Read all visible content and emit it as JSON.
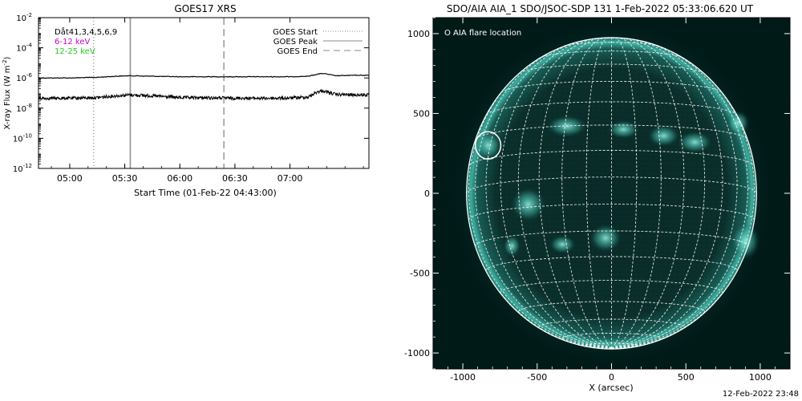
{
  "footer": "12-Feb-2022 23:48",
  "chart_data": [
    {
      "type": "line",
      "title": "GOES17 XRS",
      "xlabel": "Start Time (01-Feb-22 04:43:00)",
      "ylabel": "X-ray Flux (W m",
      "ylabel_sup": "-2",
      "ylabel_close": ")",
      "y_scale": "log",
      "ylim": [
        1e-12,
        0.01
      ],
      "y_ticks": [
        {
          "value": 0.01,
          "base": "10",
          "exp": "-2"
        },
        {
          "value": 0.0001,
          "base": "10",
          "exp": "-4"
        },
        {
          "value": 1e-06,
          "base": "10",
          "exp": "-6"
        },
        {
          "value": 1e-08,
          "base": "10",
          "exp": "-8"
        },
        {
          "value": 1e-10,
          "base": "10",
          "exp": "-10"
        },
        {
          "value": 1e-12,
          "base": "10",
          "exp": "-12"
        }
      ],
      "x_ticks": [
        {
          "time": "05:00",
          "label": "05:00"
        },
        {
          "time": "05:30",
          "label": "05:30"
        },
        {
          "time": "06:00",
          "label": "06:00"
        },
        {
          "time": "06:30",
          "label": "06:30"
        },
        {
          "time": "07:00",
          "label": "07:00"
        }
      ],
      "xlim": [
        "04:43",
        "07:43"
      ],
      "info_lines": [
        {
          "text": "Dåt41,3,4,5,6,9",
          "color": "#000000"
        },
        {
          "text": "6-12 keV",
          "color": "#cc00cc"
        },
        {
          "text": "12-25 keV",
          "color": "#22cc22"
        }
      ],
      "legend": [
        {
          "label": "GOES Start",
          "style": "dotted"
        },
        {
          "label": "GOES Peak",
          "style": "solid"
        },
        {
          "label": "GOES End",
          "style": "dashed"
        }
      ],
      "legend_position": "top-right",
      "markers": [
        {
          "name": "GOES Start",
          "time": "05:13",
          "style": "dotted"
        },
        {
          "name": "GOES Peak",
          "time": "05:33",
          "style": "solid"
        },
        {
          "name": "GOES End",
          "time": "06:24",
          "style": "dashed"
        }
      ],
      "series": [
        {
          "channel": "long",
          "x": [
            "04:43",
            "05:00",
            "05:15",
            "05:25",
            "05:33",
            "05:45",
            "06:00",
            "06:15",
            "06:30",
            "06:45",
            "07:00",
            "07:10",
            "07:15",
            "07:18",
            "07:25",
            "07:35",
            "07:43"
          ],
          "values": [
            1e-06,
            1e-06,
            1.1e-06,
            1.3e-06,
            1.4e-06,
            1.3e-06,
            1.2e-06,
            1.2e-06,
            1.2e-06,
            1.2e-06,
            1.2e-06,
            1.3e-06,
            1.8e-06,
            2e-06,
            1.4e-06,
            1.5e-06,
            1.5e-06
          ]
        },
        {
          "channel": "short",
          "x": [
            "04:43",
            "05:00",
            "05:15",
            "05:25",
            "05:33",
            "05:45",
            "06:00",
            "06:15",
            "06:30",
            "06:45",
            "07:00",
            "07:10",
            "07:15",
            "07:18",
            "07:25",
            "07:35",
            "07:43"
          ],
          "values": [
            4.5e-08,
            4.5e-08,
            5e-08,
            6.5e-08,
            7.5e-08,
            6.5e-08,
            5e-08,
            4.8e-08,
            4.6e-08,
            4.5e-08,
            4.6e-08,
            5.5e-08,
            1.2e-07,
            1.4e-07,
            8e-08,
            7.5e-08,
            7.5e-08
          ]
        }
      ]
    },
    {
      "type": "image",
      "title": "SDO/AIA AIA_1 SDO/JSOC-SDP 131  1-Feb-2022 05:33:06.620 UT",
      "xlabel": "X (arcsec)",
      "ylabel": "",
      "xlim": [
        -1200,
        1200
      ],
      "ylim": [
        -1100,
        1100
      ],
      "x_ticks": [
        -1000,
        -500,
        0,
        500,
        1000
      ],
      "y_ticks": [
        -1000,
        -500,
        0,
        500,
        1000
      ],
      "x_tick_labels": [
        "-1000",
        "-500",
        "0",
        "500",
        "1000"
      ],
      "y_tick_labels": [
        "-1000",
        "-500",
        "0",
        "500",
        "1000"
      ],
      "legend": "O AIA flare location",
      "solar_radius_arcsec": 975,
      "grid_spacing_deg": 10,
      "flare_location": {
        "x": -830,
        "y": 300,
        "radius": 90
      },
      "colors": {
        "background": "#001a18",
        "limb": "#4fd6c4",
        "disk": "#0a2d2a",
        "grid": "#ffffff"
      }
    }
  ]
}
